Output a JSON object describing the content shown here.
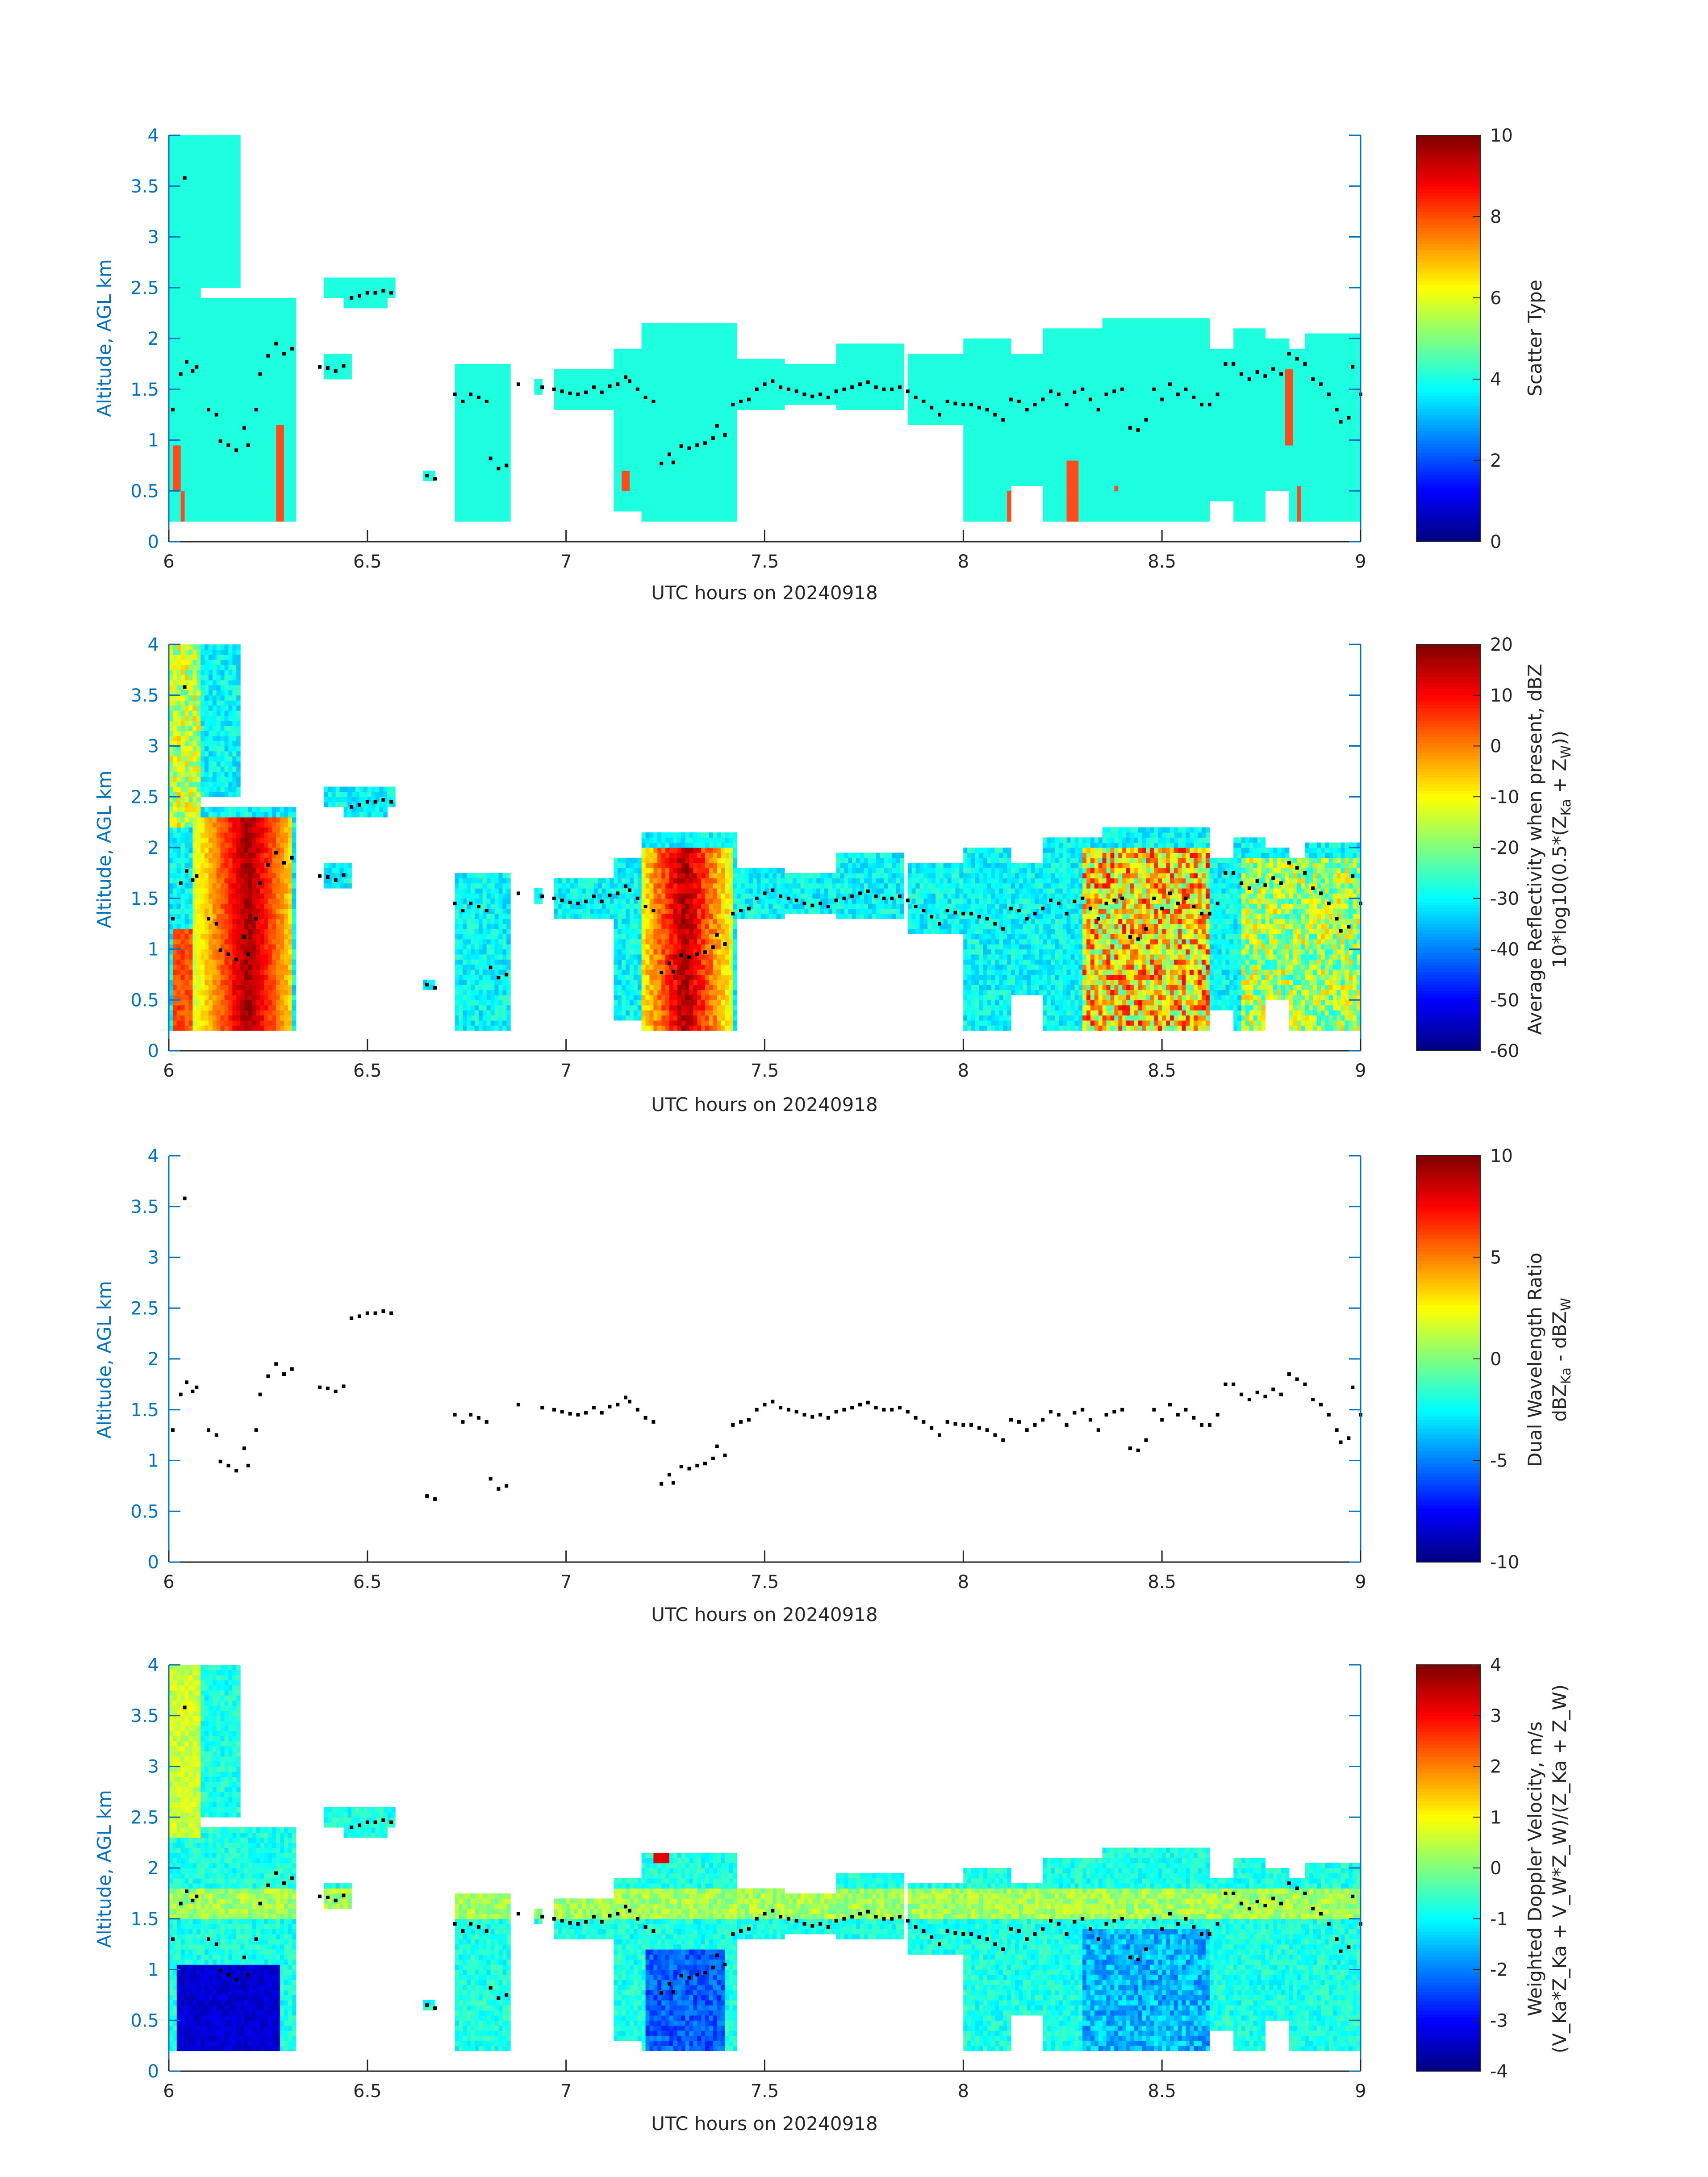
{
  "figure": {
    "x_label": "UTC hours on 20240918",
    "y_label": "Altitude, AGL km",
    "colors": {
      "axis_y": "#0072BD",
      "axis_x": "#262626",
      "dots": "#000000",
      "cloud_mask": "#1EFFE0",
      "scatter_special": "#FF4A1C"
    }
  },
  "chart_data": [
    {
      "type": "heatmap",
      "panel": "scatter_type",
      "xlabel": "UTC hours on 20240918",
      "ylabel": "Altitude, AGL km",
      "xlim": [
        6,
        9
      ],
      "ylim": [
        0,
        4
      ],
      "xticks": [
        6,
        6.5,
        7,
        7.5,
        8,
        8.5,
        9
      ],
      "yticks": [
        0,
        0.5,
        1,
        1.5,
        2,
        2.5,
        3,
        3.5,
        4
      ],
      "colorbar": {
        "label": "Scatter Type",
        "lim": [
          0,
          10
        ],
        "ticks": [
          0,
          2,
          4,
          6,
          8,
          10
        ]
      },
      "typical_value": 4,
      "special_value": 7.4
    },
    {
      "type": "heatmap",
      "panel": "reflectivity",
      "xlabel": "UTC hours on 20240918",
      "ylabel": "Altitude, AGL km",
      "xlim": [
        6,
        9
      ],
      "ylim": [
        0,
        4
      ],
      "xticks": [
        6,
        6.5,
        7,
        7.5,
        8,
        8.5,
        9
      ],
      "yticks": [
        0,
        0.5,
        1,
        1.5,
        2,
        2.5,
        3,
        3.5,
        4
      ],
      "colorbar": {
        "label_line1": "Average Reflectivity when present, dBZ",
        "label_line2_main": "10*log10(0.5*(Z",
        "label_line2_sub1": "Ka",
        "label_line2_mid": " + Z",
        "label_line2_sub2": "W",
        "label_line2_end": "))",
        "lim": [
          -60,
          20
        ],
        "ticks": [
          -60,
          -50,
          -40,
          -30,
          -20,
          -10,
          0,
          10,
          20
        ]
      }
    },
    {
      "type": "scatter",
      "panel": "dual_wavelength_ratio",
      "xlabel": "UTC hours on 20240918",
      "ylabel": "Altitude, AGL km",
      "xlim": [
        6,
        9
      ],
      "ylim": [
        0,
        4
      ],
      "xticks": [
        6,
        6.5,
        7,
        7.5,
        8,
        8.5,
        9
      ],
      "yticks": [
        0,
        0.5,
        1,
        1.5,
        2,
        2.5,
        3,
        3.5,
        4
      ],
      "colorbar": {
        "label_line1": "Dual Wavelength Ratio",
        "label_line2_a": "dBZ",
        "label_line2_sub1": "Ka",
        "label_line2_b": " - dBZ",
        "label_line2_sub2": "W",
        "lim": [
          -10,
          10
        ],
        "ticks": [
          -10,
          -5,
          0,
          5,
          10
        ]
      }
    },
    {
      "type": "heatmap",
      "panel": "doppler_velocity",
      "xlabel": "UTC hours on 20240918",
      "ylabel": "Altitude, AGL km",
      "xlim": [
        6,
        9
      ],
      "ylim": [
        0,
        4
      ],
      "xticks": [
        6,
        6.5,
        7,
        7.5,
        8,
        8.5,
        9
      ],
      "yticks": [
        0,
        0.5,
        1,
        1.5,
        2,
        2.5,
        3,
        3.5,
        4
      ],
      "colorbar": {
        "label_line1": "Weighted Doppler Velocity, m/s",
        "label_line2": "(V_Ka*Z_Ka + V_W*Z_W)/(Z_Ka + Z_W)",
        "lim": [
          -4,
          4
        ],
        "ticks": [
          -4,
          -3,
          -2,
          -1,
          0,
          1,
          2,
          3,
          4
        ]
      }
    }
  ],
  "dots": [
    [
      6.01,
      1.3
    ],
    [
      6.03,
      1.65
    ],
    [
      6.04,
      3.58
    ],
    [
      6.045,
      1.77
    ],
    [
      6.06,
      1.68
    ],
    [
      6.07,
      1.72
    ],
    [
      6.1,
      1.3
    ],
    [
      6.12,
      1.25
    ],
    [
      6.13,
      0.99
    ],
    [
      6.15,
      0.95
    ],
    [
      6.17,
      0.9
    ],
    [
      6.19,
      1.12
    ],
    [
      6.2,
      0.95
    ],
    [
      6.22,
      1.3
    ],
    [
      6.23,
      1.65
    ],
    [
      6.25,
      1.83
    ],
    [
      6.27,
      1.95
    ],
    [
      6.29,
      1.85
    ],
    [
      6.31,
      1.9
    ],
    [
      6.38,
      1.72
    ],
    [
      6.4,
      1.71
    ],
    [
      6.42,
      1.68
    ],
    [
      6.44,
      1.73
    ],
    [
      6.46,
      2.4
    ],
    [
      6.48,
      2.42
    ],
    [
      6.5,
      2.45
    ],
    [
      6.52,
      2.45
    ],
    [
      6.54,
      2.47
    ],
    [
      6.56,
      2.45
    ],
    [
      6.65,
      0.65
    ],
    [
      6.67,
      0.62
    ],
    [
      6.72,
      1.45
    ],
    [
      6.74,
      1.38
    ],
    [
      6.76,
      1.45
    ],
    [
      6.78,
      1.42
    ],
    [
      6.8,
      1.38
    ],
    [
      6.81,
      0.82
    ],
    [
      6.83,
      0.72
    ],
    [
      6.85,
      0.75
    ],
    [
      6.88,
      1.55
    ],
    [
      6.94,
      1.52
    ],
    [
      6.97,
      1.5
    ],
    [
      6.99,
      1.48
    ],
    [
      7.01,
      1.46
    ],
    [
      7.03,
      1.45
    ],
    [
      7.05,
      1.47
    ],
    [
      7.07,
      1.52
    ],
    [
      7.09,
      1.47
    ],
    [
      7.11,
      1.53
    ],
    [
      7.13,
      1.55
    ],
    [
      7.15,
      1.62
    ],
    [
      7.16,
      1.58
    ],
    [
      7.18,
      1.5
    ],
    [
      7.2,
      1.42
    ],
    [
      7.22,
      1.38
    ],
    [
      7.24,
      0.77
    ],
    [
      7.26,
      0.86
    ],
    [
      7.27,
      0.78
    ],
    [
      7.29,
      0.94
    ],
    [
      7.31,
      0.92
    ],
    [
      7.33,
      0.95
    ],
    [
      7.35,
      0.97
    ],
    [
      7.37,
      1.02
    ],
    [
      7.38,
      1.14
    ],
    [
      7.4,
      1.05
    ],
    [
      7.42,
      1.35
    ],
    [
      7.44,
      1.38
    ],
    [
      7.46,
      1.4
    ],
    [
      7.48,
      1.5
    ],
    [
      7.5,
      1.55
    ],
    [
      7.52,
      1.58
    ],
    [
      7.54,
      1.52
    ],
    [
      7.56,
      1.5
    ],
    [
      7.58,
      1.48
    ],
    [
      7.6,
      1.45
    ],
    [
      7.62,
      1.43
    ],
    [
      7.64,
      1.45
    ],
    [
      7.66,
      1.42
    ],
    [
      7.68,
      1.48
    ],
    [
      7.7,
      1.5
    ],
    [
      7.72,
      1.52
    ],
    [
      7.74,
      1.55
    ],
    [
      7.76,
      1.57
    ],
    [
      7.78,
      1.52
    ],
    [
      7.8,
      1.5
    ],
    [
      7.82,
      1.5
    ],
    [
      7.84,
      1.52
    ],
    [
      7.86,
      1.48
    ],
    [
      7.88,
      1.42
    ],
    [
      7.9,
      1.38
    ],
    [
      7.92,
      1.32
    ],
    [
      7.94,
      1.25
    ],
    [
      7.96,
      1.38
    ],
    [
      7.98,
      1.36
    ],
    [
      8.0,
      1.35
    ],
    [
      8.02,
      1.35
    ],
    [
      8.04,
      1.32
    ],
    [
      8.06,
      1.3
    ],
    [
      8.08,
      1.25
    ],
    [
      8.1,
      1.2
    ],
    [
      8.12,
      1.4
    ],
    [
      8.14,
      1.38
    ],
    [
      8.16,
      1.3
    ],
    [
      8.18,
      1.35
    ],
    [
      8.2,
      1.4
    ],
    [
      8.22,
      1.48
    ],
    [
      8.24,
      1.45
    ],
    [
      8.26,
      1.35
    ],
    [
      8.28,
      1.47
    ],
    [
      8.3,
      1.5
    ],
    [
      8.32,
      1.4
    ],
    [
      8.34,
      1.3
    ],
    [
      8.36,
      1.45
    ],
    [
      8.38,
      1.48
    ],
    [
      8.4,
      1.5
    ],
    [
      8.42,
      1.12
    ],
    [
      8.44,
      1.1
    ],
    [
      8.46,
      1.2
    ],
    [
      8.48,
      1.5
    ],
    [
      8.5,
      1.4
    ],
    [
      8.52,
      1.55
    ],
    [
      8.54,
      1.45
    ],
    [
      8.56,
      1.5
    ],
    [
      8.58,
      1.42
    ],
    [
      8.6,
      1.35
    ],
    [
      8.62,
      1.35
    ],
    [
      8.64,
      1.45
    ],
    [
      8.66,
      1.75
    ],
    [
      8.68,
      1.75
    ],
    [
      8.7,
      1.65
    ],
    [
      8.72,
      1.6
    ],
    [
      8.74,
      1.67
    ],
    [
      8.76,
      1.63
    ],
    [
      8.78,
      1.7
    ],
    [
      8.8,
      1.65
    ],
    [
      8.82,
      1.85
    ],
    [
      8.84,
      1.8
    ],
    [
      8.86,
      1.75
    ],
    [
      8.88,
      1.6
    ],
    [
      8.9,
      1.55
    ],
    [
      8.92,
      1.45
    ],
    [
      8.94,
      1.3
    ],
    [
      8.95,
      1.18
    ],
    [
      8.97,
      1.22
    ],
    [
      8.98,
      1.72
    ],
    [
      9.0,
      1.45
    ]
  ]
}
